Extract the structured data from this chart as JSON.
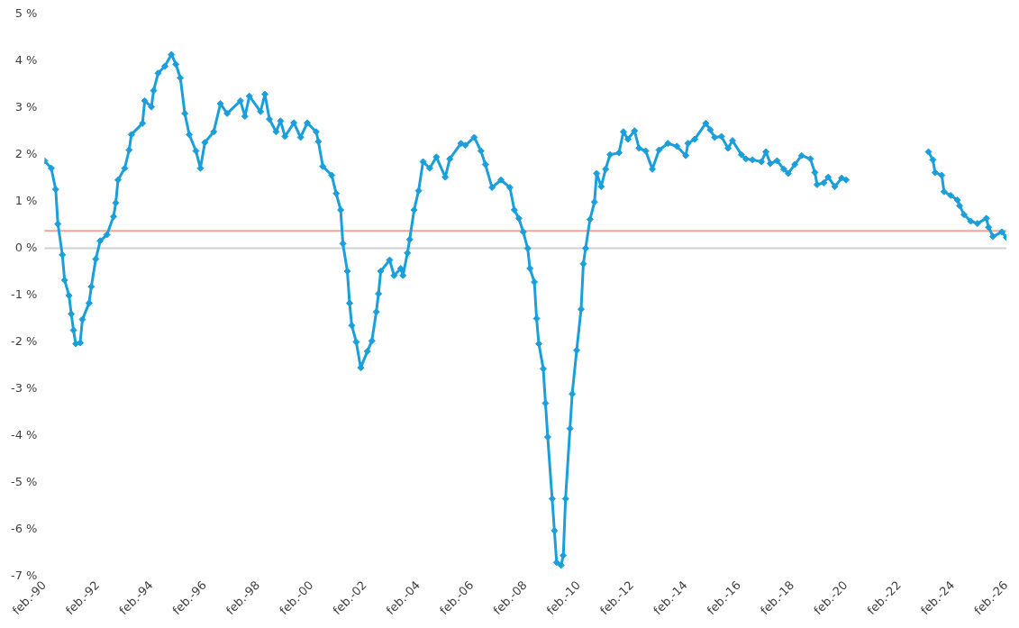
{
  "chart_data": {
    "type": "line",
    "x": [
      "1990-02",
      "1990-05",
      "1990-07",
      "1990-08",
      "1990-10",
      "1990-11",
      "1991-01",
      "1991-02",
      "1991-03",
      "1991-04",
      "1991-06",
      "1991-07",
      "1991-10",
      "1991-11",
      "1992-01",
      "1992-03",
      "1992-06",
      "1992-09",
      "1992-10",
      "1992-11",
      "1993-02",
      "1993-04",
      "1993-05",
      "1993-10",
      "1993-11",
      "1994-02",
      "1994-03",
      "1994-05",
      "1994-08",
      "1994-11",
      "1995-01",
      "1995-03",
      "1995-05",
      "1995-07",
      "1995-10",
      "1995-12",
      "1996-02",
      "1996-06",
      "1996-09",
      "1996-12",
      "1997-06",
      "1997-08",
      "1997-10",
      "1998-03",
      "1998-05",
      "1998-07",
      "1998-10",
      "1998-12",
      "1999-02",
      "1999-06",
      "1999-09",
      "1999-12",
      "2000-04",
      "2000-05",
      "2000-07",
      "2000-11",
      "2001-01",
      "2001-03",
      "2001-04",
      "2001-06",
      "2001-07",
      "2001-08",
      "2001-10",
      "2001-12",
      "2002-03",
      "2002-05",
      "2002-07",
      "2002-08",
      "2002-09",
      "2003-01",
      "2003-03",
      "2003-06",
      "2003-07",
      "2003-09",
      "2003-10",
      "2003-12",
      "2004-02",
      "2004-04",
      "2004-07",
      "2004-10",
      "2005-02",
      "2005-04",
      "2005-09",
      "2005-11",
      "2006-03",
      "2006-06",
      "2006-08",
      "2006-11",
      "2007-03",
      "2007-07",
      "2007-09",
      "2007-11",
      "2008-01",
      "2008-03",
      "2008-04",
      "2008-06",
      "2008-07",
      "2008-08",
      "2008-10",
      "2008-11",
      "2008-12",
      "2009-02",
      "2009-03",
      "2009-04",
      "2009-06",
      "2009-07",
      "2009-08",
      "2009-10",
      "2009-11",
      "2010-01",
      "2010-03",
      "2010-04",
      "2010-05",
      "2010-07",
      "2010-09",
      "2010-10",
      "2010-12",
      "2011-02",
      "2011-04",
      "2011-08",
      "2011-10",
      "2011-12",
      "2012-03",
      "2012-05",
      "2012-08",
      "2012-11",
      "2013-02",
      "2013-06",
      "2013-10",
      "2014-02",
      "2014-03",
      "2014-06",
      "2014-11",
      "2015-01",
      "2015-03",
      "2015-06",
      "2015-09",
      "2015-11",
      "2016-03",
      "2016-05",
      "2016-08",
      "2016-12",
      "2017-02",
      "2017-04",
      "2017-07",
      "2017-10",
      "2017-12",
      "2018-03",
      "2018-06",
      "2018-10",
      "2018-12",
      "2019-01",
      "2019-04",
      "2019-06",
      "2019-09",
      "2019-12",
      "2020-02",
      "2021-08",
      "2023-03",
      "2023-05",
      "2023-06",
      "2023-09",
      "2023-10",
      "2024-01",
      "2024-04",
      "2024-05",
      "2024-07",
      "2024-10",
      "2025-01",
      "2025-05",
      "2025-06",
      "2025-08",
      "2025-12",
      "2026-02"
    ],
    "series": [
      {
        "color": "#1a9fdb",
        "values": [
          1.87,
          1.71,
          1.26,
          0.52,
          -0.14,
          -0.68,
          -1.01,
          -1.4,
          -1.75,
          -2.04,
          -2.02,
          -1.52,
          -1.17,
          -0.82,
          -0.23,
          0.16,
          0.29,
          0.68,
          0.97,
          1.46,
          1.71,
          2.1,
          2.43,
          2.67,
          3.15,
          3.02,
          3.37,
          3.74,
          3.89,
          4.14,
          3.93,
          3.64,
          2.88,
          2.43,
          2.08,
          1.71,
          2.26,
          2.49,
          3.09,
          2.88,
          3.15,
          2.82,
          3.25,
          2.92,
          3.29,
          2.76,
          2.49,
          2.72,
          2.39,
          2.68,
          2.37,
          2.68,
          2.49,
          2.28,
          1.75,
          1.56,
          1.17,
          0.82,
          0.1,
          -0.49,
          -1.17,
          -1.65,
          -2.0,
          -2.55,
          -2.2,
          -1.98,
          -1.36,
          -0.97,
          -0.49,
          -0.25,
          -0.58,
          -0.43,
          -0.58,
          -0.1,
          0.19,
          0.82,
          1.23,
          1.85,
          1.71,
          1.95,
          1.52,
          1.91,
          2.24,
          2.2,
          2.37,
          2.08,
          1.79,
          1.3,
          1.46,
          1.3,
          0.82,
          0.64,
          0.35,
          0.0,
          -0.43,
          -0.72,
          -1.5,
          -2.04,
          -2.57,
          -3.31,
          -4.03,
          -5.35,
          -6.03,
          -6.71,
          -6.77,
          -6.56,
          -5.35,
          -3.85,
          -3.11,
          -2.18,
          -1.3,
          -0.33,
          0.0,
          0.62,
          0.99,
          1.6,
          1.32,
          1.69,
          2.0,
          2.04,
          2.49,
          2.33,
          2.51,
          2.14,
          2.08,
          1.69,
          2.1,
          2.24,
          2.18,
          1.98,
          2.24,
          2.33,
          2.67,
          2.53,
          2.37,
          2.39,
          2.14,
          2.3,
          2.0,
          1.91,
          1.89,
          1.85,
          2.06,
          1.81,
          1.87,
          1.69,
          1.6,
          1.79,
          1.98,
          1.91,
          1.62,
          1.36,
          1.4,
          1.52,
          1.32,
          1.5,
          1.46,
          null,
          2.06,
          1.89,
          1.62,
          1.56,
          1.21,
          1.13,
          1.03,
          0.91,
          0.72,
          0.58,
          0.53,
          0.64,
          0.45,
          0.25,
          0.35,
          0.23
        ]
      }
    ],
    "xlim": [
      "1990-02",
      "2026-02"
    ],
    "xticks": [
      {
        "value": "1990-02",
        "label": "feb.-90"
      },
      {
        "value": "1992-02",
        "label": "feb.-92"
      },
      {
        "value": "1994-02",
        "label": "feb.-94"
      },
      {
        "value": "1996-02",
        "label": "feb.-96"
      },
      {
        "value": "1998-02",
        "label": "feb.-98"
      },
      {
        "value": "2000-02",
        "label": "feb.-00"
      },
      {
        "value": "2002-02",
        "label": "feb.-02"
      },
      {
        "value": "2004-02",
        "label": "feb.-04"
      },
      {
        "value": "2006-02",
        "label": "feb.-06"
      },
      {
        "value": "2008-02",
        "label": "feb.-08"
      },
      {
        "value": "2010-02",
        "label": "feb.-10"
      },
      {
        "value": "2012-02",
        "label": "feb.-12"
      },
      {
        "value": "2014-02",
        "label": "feb.-14"
      },
      {
        "value": "2016-02",
        "label": "feb.-16"
      },
      {
        "value": "2018-02",
        "label": "feb.-18"
      },
      {
        "value": "2020-02",
        "label": "feb.-20"
      },
      {
        "value": "2022-02",
        "label": "feb.-22"
      },
      {
        "value": "2024-02",
        "label": "feb.-24"
      },
      {
        "value": "2026-02",
        "label": "feb.-26"
      }
    ],
    "ylim": [
      -7,
      5
    ],
    "yticks": [
      {
        "value": -7,
        "label": "-7 %"
      },
      {
        "value": -6,
        "label": "-6 %"
      },
      {
        "value": -5,
        "label": "-5 %"
      },
      {
        "value": -4,
        "label": "-4 %"
      },
      {
        "value": -3,
        "label": "-3 %"
      },
      {
        "value": -2,
        "label": "-2 %"
      },
      {
        "value": -1,
        "label": "-1 %"
      },
      {
        "value": 0,
        "label": "0 %"
      },
      {
        "value": 1,
        "label": "1 %"
      },
      {
        "value": 2,
        "label": "2 %"
      },
      {
        "value": 3,
        "label": "3 %"
      },
      {
        "value": 4,
        "label": "4 %"
      },
      {
        "value": 5,
        "label": "5 %"
      }
    ],
    "ref_lines": [
      {
        "axis": "y",
        "value": 0,
        "color": "#d0d0d0"
      },
      {
        "axis": "y",
        "value": 0.37,
        "color": "#f4a397"
      }
    ],
    "grid": false,
    "legend": false,
    "marker": "diamond",
    "line_style": "solid"
  }
}
